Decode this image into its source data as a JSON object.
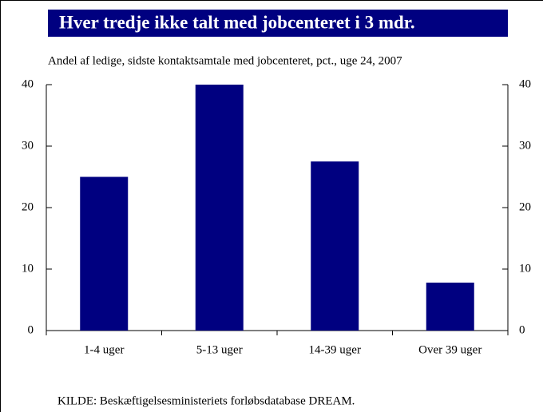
{
  "chart_data": {
    "type": "bar",
    "title": "Hver tredje ikke talt med jobcenteret i 3 mdr.",
    "subtitle": "Andel af ledige, sidste kontaktsamtale med jobcenteret, pct., uge 24, 2007",
    "source": "KILDE: Beskæftigelsesministeriets forløbsdatabase DREAM.",
    "categories": [
      "1-4 uger",
      "5-13 uger",
      "14-39 uger",
      "Over 39 uger"
    ],
    "values": [
      25,
      40,
      27.5,
      7.8
    ],
    "color": "#000080",
    "ylim": [
      0,
      40
    ],
    "yticks": [
      0,
      10,
      20,
      30,
      40
    ],
    "y2lim": [
      0,
      40
    ],
    "y2ticks": [
      0,
      10,
      20,
      30,
      40
    ],
    "grid": false
  }
}
